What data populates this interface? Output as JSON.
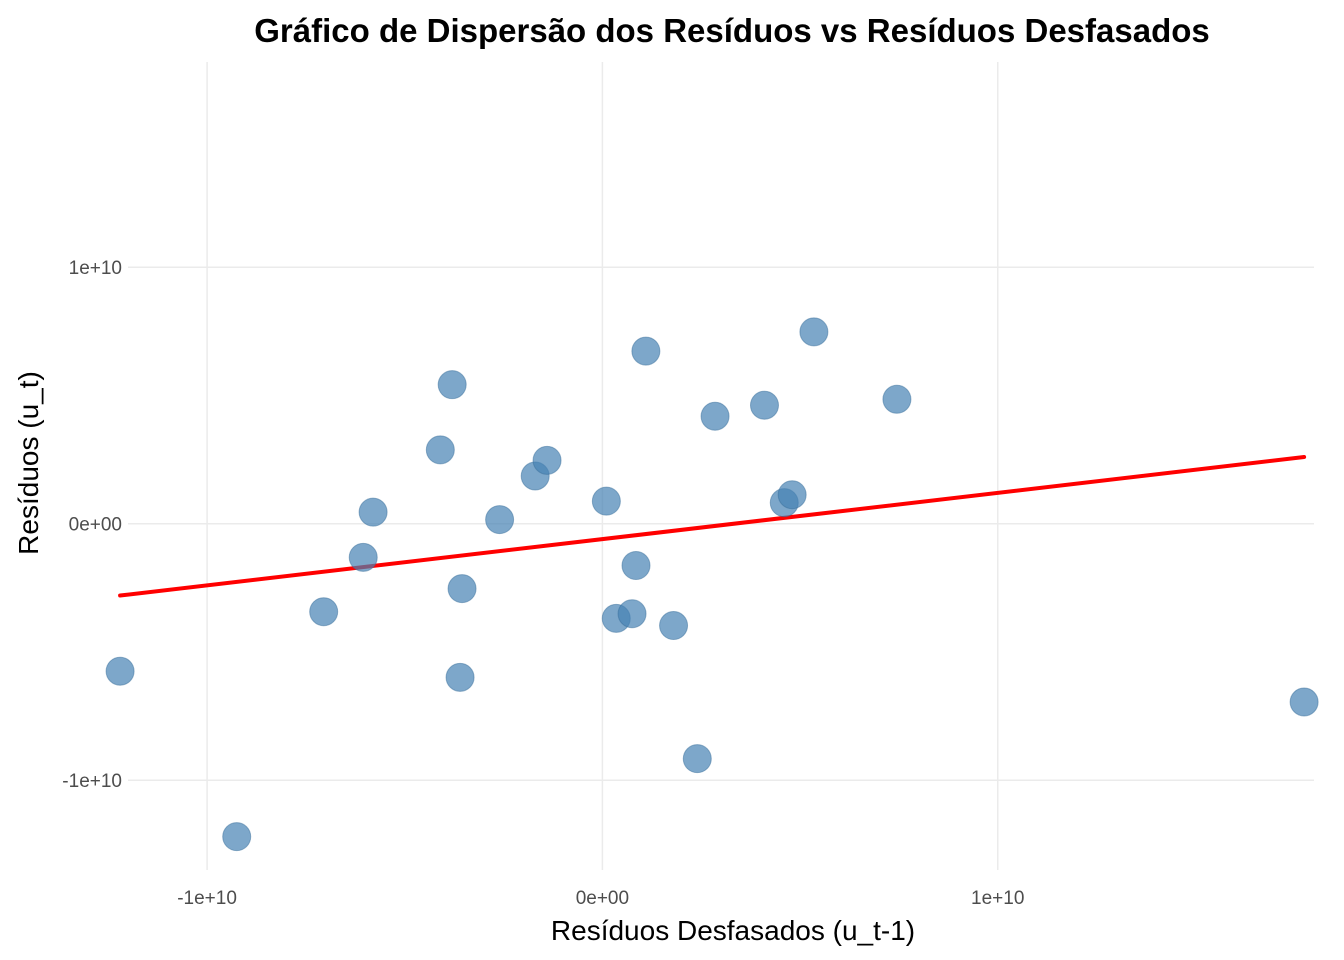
{
  "chart_data": {
    "type": "scatter",
    "title": "Gráfico de Dispersão dos Resíduos vs Resíduos Desfasados",
    "xlabel": "Resíduos Desfasados (u_t-1)",
    "ylabel": "Resíduos (u_t)",
    "xlim": [
      -12000000000.0,
      18000000000.0
    ],
    "ylim": [
      -13500000000.0,
      18000000000.0
    ],
    "x_ticks": [
      -10000000000.0,
      0,
      10000000000.0
    ],
    "x_tick_labels": [
      "-1e+10",
      "0e+00",
      "1e+10"
    ],
    "y_ticks": [
      -10000000000.0,
      0,
      10000000000.0
    ],
    "y_tick_labels": [
      "-1e+10",
      "0e+00",
      "1e+10"
    ],
    "grid": true,
    "legend": "none",
    "point_color": "#4682B4",
    "line_color": "#FF0000",
    "points": [
      {
        "x": -12200000000.0,
        "y": -5750000000.0
      },
      {
        "x": -9250000000.0,
        "y": -12200000000.0
      },
      {
        "x": -7050000000.0,
        "y": -3430000000.0
      },
      {
        "x": -6050000000.0,
        "y": -1310000000.0
      },
      {
        "x": -5800000000.0,
        "y": 450000000.0
      },
      {
        "x": -4100000000.0,
        "y": 2880000000.0
      },
      {
        "x": -3800000000.0,
        "y": 5420000000.0
      },
      {
        "x": -3550000000.0,
        "y": -2530000000.0
      },
      {
        "x": -3600000000.0,
        "y": -5990000000.0
      },
      {
        "x": -2600000000.0,
        "y": 160000000.0
      },
      {
        "x": -1700000000.0,
        "y": 1860000000.0
      },
      {
        "x": -1400000000.0,
        "y": 2470000000.0
      },
      {
        "x": 100000000.0,
        "y": 880000000.0
      },
      {
        "x": 350000000.0,
        "y": -3690000000.0
      },
      {
        "x": 750000000.0,
        "y": -3510000000.0
      },
      {
        "x": 850000000.0,
        "y": -1630000000.0
      },
      {
        "x": 1100000000.0,
        "y": 6730000000.0
      },
      {
        "x": 1800000000.0,
        "y": -3970000000.0
      },
      {
        "x": 2400000000.0,
        "y": -9160000000.0
      },
      {
        "x": 2850000000.0,
        "y": 4190000000.0
      },
      {
        "x": 4100000000.0,
        "y": 4620000000.0
      },
      {
        "x": 4600000000.0,
        "y": 820000000.0
      },
      {
        "x": 4800000000.0,
        "y": 1130000000.0
      },
      {
        "x": 5350000000.0,
        "y": 7480000000.0
      },
      {
        "x": 7450000000.0,
        "y": 4850000000.0
      },
      {
        "x": 17750000000.0,
        "y": -6950000000.0
      }
    ],
    "regression_line": {
      "x": [
        -12200000000.0,
        17750000000.0
      ],
      "y": [
        -2800000000.0,
        2600000000.0
      ]
    }
  }
}
